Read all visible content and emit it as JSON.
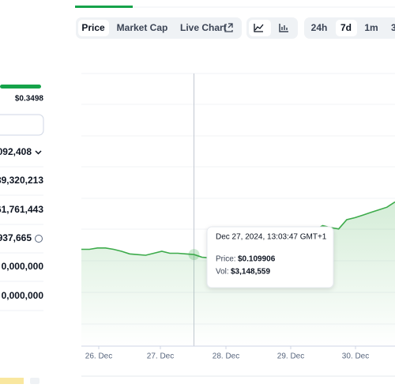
{
  "sidebar": {
    "range_high": "$0.3498",
    "rows": [
      "092,408",
      "39,320,213",
      "61,761,443",
      "937,665",
      "0,000,000",
      "0,000,000"
    ]
  },
  "toolbar": {
    "tabs": [
      "Price",
      "Market Cap",
      "Live Chart"
    ],
    "ranges": [
      "24h",
      "7d",
      "1m",
      "3"
    ]
  },
  "chart_data": {
    "type": "line",
    "color": "#3dab4b",
    "values": [
      0.1107,
      0.1107,
      0.1109,
      0.1109,
      0.1107,
      0.1104,
      0.11,
      0.1099,
      0.1098,
      0.1101,
      0.1104,
      0.1101,
      0.1101,
      0.11,
      0.109906,
      0.1095,
      0.1094,
      0.1097,
      0.1099,
      0.1101,
      0.1104,
      0.1106,
      0.1109,
      0.1111,
      0.1113,
      0.1118,
      0.1123,
      0.1127,
      0.113,
      0.1136,
      0.1143,
      0.114,
      0.1138,
      0.1152,
      0.1155,
      0.1159,
      0.1163,
      0.1167,
      0.1171,
      0.1179
    ],
    "ylim": [
      0.096,
      0.1374
    ],
    "xticks": [
      "26. Dec",
      "27. Dec",
      "28. Dec",
      "29. Dec",
      "30. Dec"
    ],
    "tooltip": {
      "date": "Dec 27, 2024, 13:03:47 GMT+1",
      "price_label": "Price:",
      "price": "$0.109906",
      "vol_label": "Vol:",
      "vol": "$3,148,559"
    }
  }
}
